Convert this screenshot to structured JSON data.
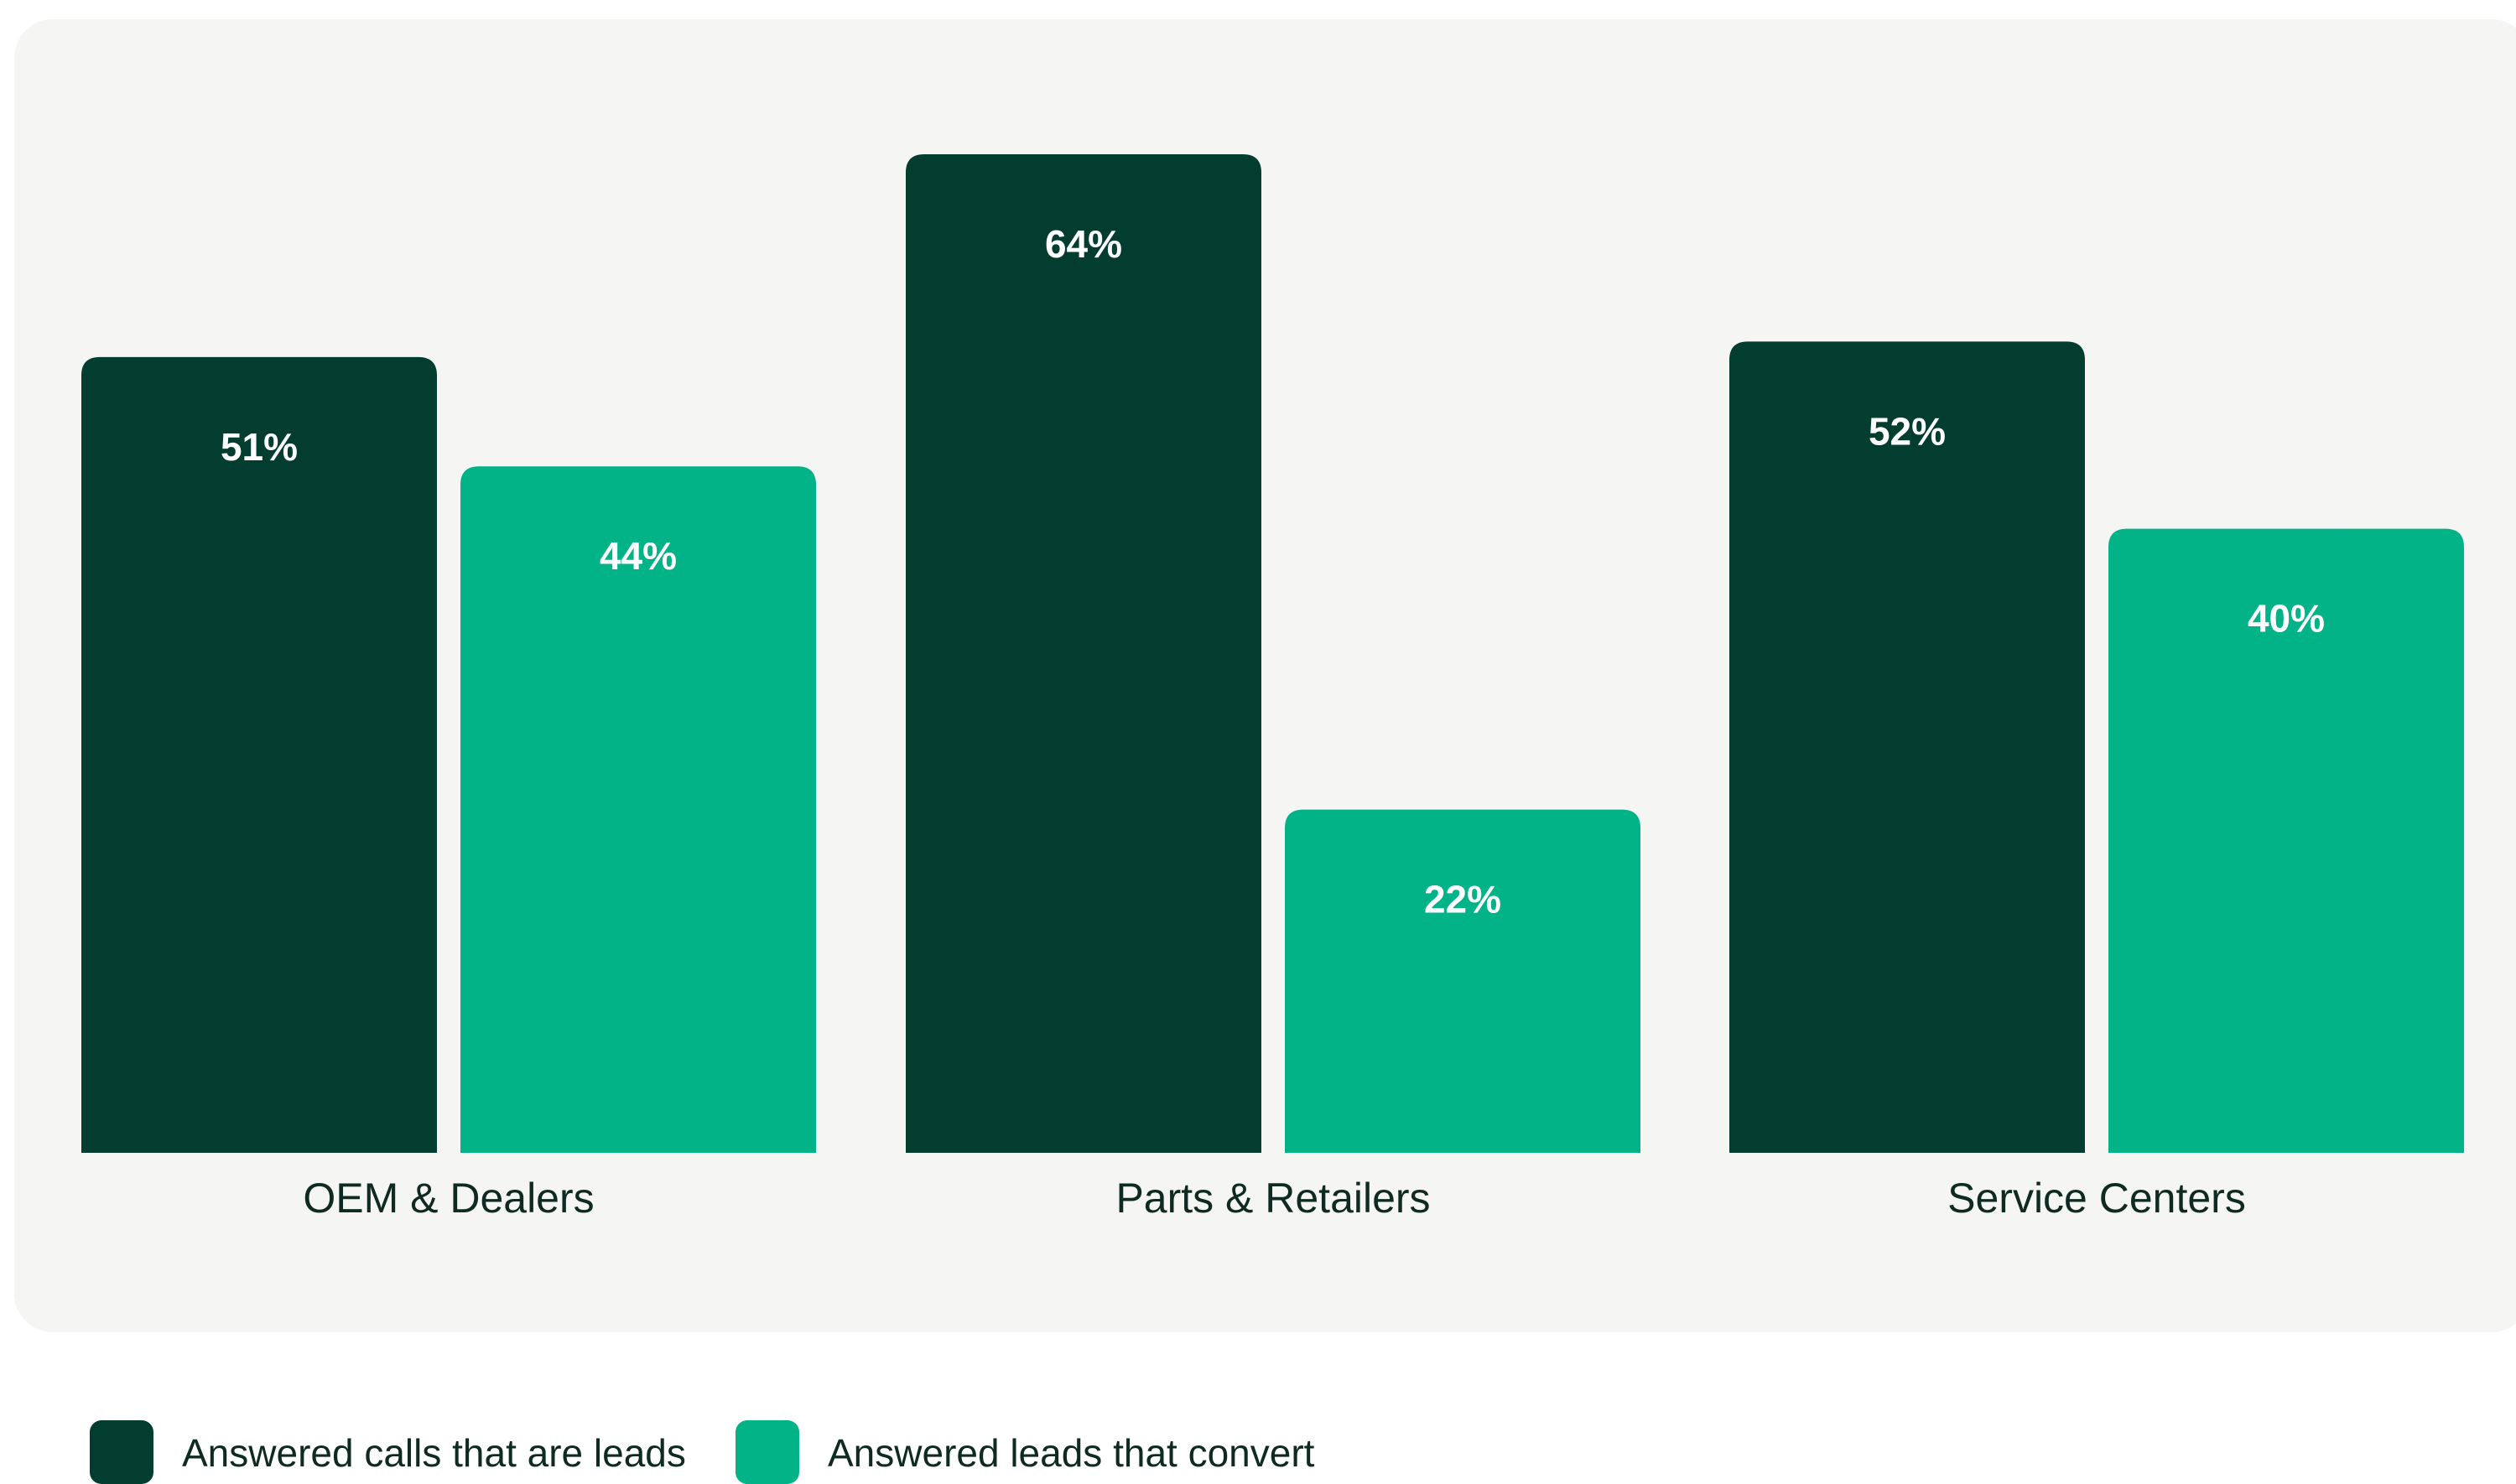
{
  "chart_data": {
    "type": "bar",
    "categories": [
      "OEM & Dealers",
      "Parts & Retailers",
      "Service Centers"
    ],
    "series": [
      {
        "name": "Answered calls that are leads",
        "values": [
          51,
          64,
          52
        ],
        "color": "#023d30"
      },
      {
        "name": "Answered leads that convert",
        "values": [
          44,
          22,
          40
        ],
        "color": "#02b388"
      }
    ],
    "value_suffix": "%",
    "ylim": [
      0,
      75
    ],
    "grid": false,
    "legend_position": "bottom-left"
  },
  "colors": {
    "panel_background": "#f5f5f3",
    "label_text": "#0f2a22"
  }
}
